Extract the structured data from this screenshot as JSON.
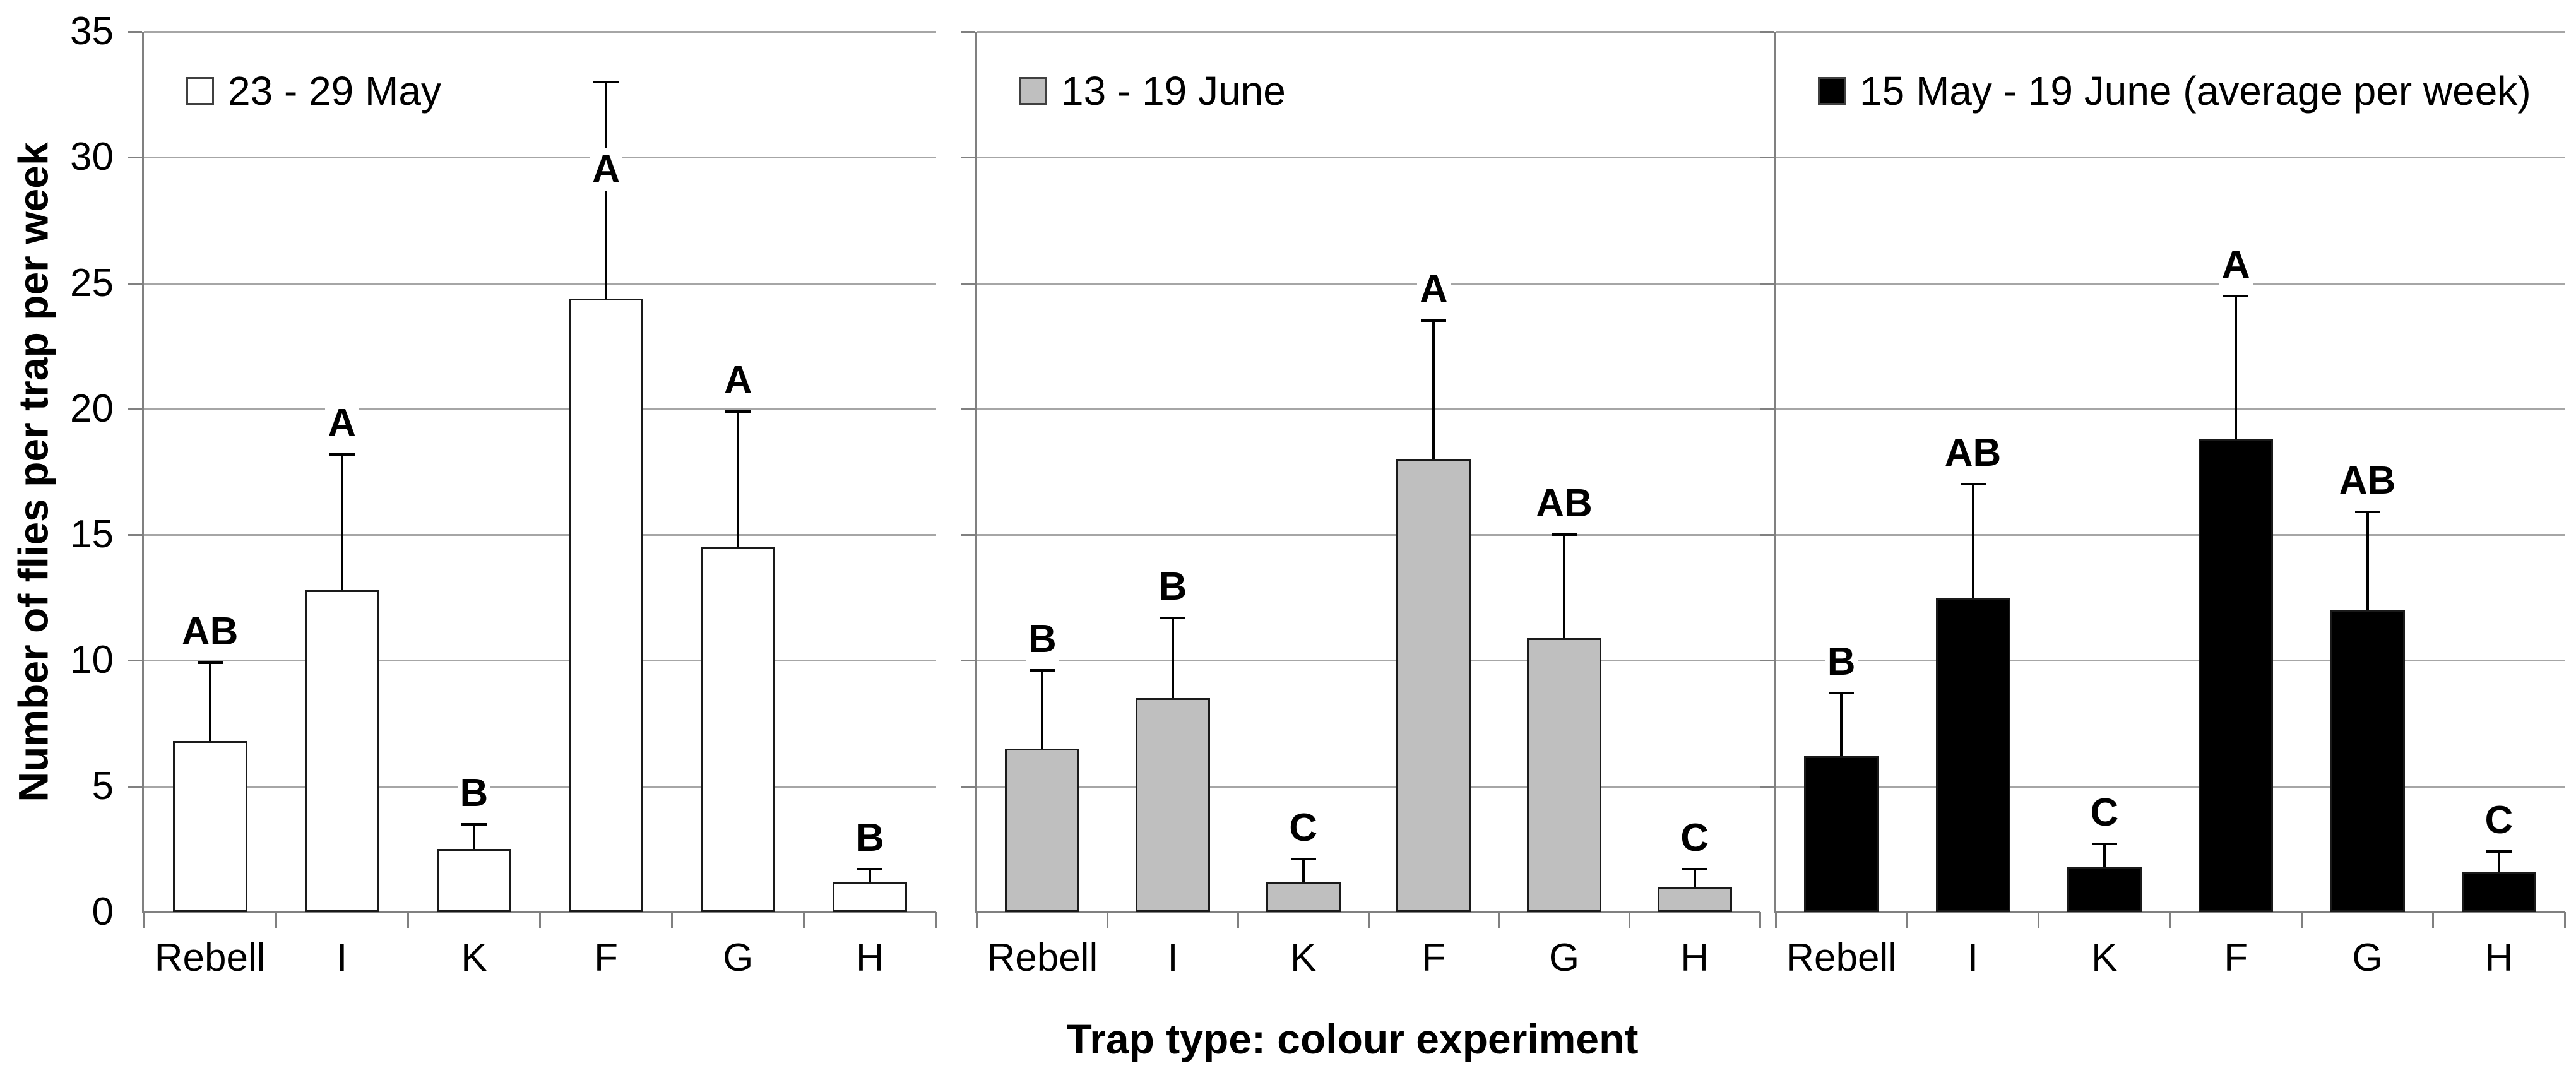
{
  "chart_data": {
    "type": "bar",
    "title": "",
    "xlabel": "Trap type: colour experiment",
    "ylabel": "Number of flies per trap per week",
    "ylim": [
      0,
      35
    ],
    "ytick_step": 5,
    "ytick_labels": [
      "0",
      "5",
      "10",
      "15",
      "20",
      "25",
      "30",
      "35"
    ],
    "grid": "horizontal",
    "legend_position": "top-left-inside-each-panel",
    "categories": [
      "Rebell",
      "I",
      "K",
      "F",
      "G",
      "H"
    ],
    "panels": [
      {
        "legend": "23 - 29 May",
        "bar_fill": "#ffffff",
        "values": [
          6.8,
          12.8,
          2.5,
          24.4,
          14.5,
          1.2
        ],
        "error_tops": [
          9.9,
          18.2,
          3.5,
          33.0,
          19.9,
          1.7
        ],
        "letters": [
          "AB",
          "A",
          "B",
          "A",
          "A",
          "B"
        ],
        "letter_y_on_line": [
          null,
          null,
          null,
          29.5,
          null,
          null
        ]
      },
      {
        "legend": "13 - 19 June",
        "bar_fill": "#bfbfbf",
        "values": [
          6.5,
          8.5,
          1.2,
          18.0,
          10.9,
          1.0
        ],
        "error_tops": [
          9.6,
          11.7,
          2.1,
          23.5,
          15.0,
          1.7
        ],
        "letters": [
          "B",
          "B",
          "C",
          "A",
          "AB",
          "C"
        ],
        "letter_y_on_line": [
          null,
          null,
          null,
          null,
          null,
          null
        ]
      },
      {
        "legend": "15 May - 19 June (average per week)",
        "bar_fill": "#000000",
        "values": [
          6.2,
          12.5,
          1.8,
          18.8,
          12.0,
          1.6
        ],
        "error_tops": [
          8.7,
          17.0,
          2.7,
          24.5,
          15.9,
          2.4
        ],
        "letters": [
          "B",
          "AB",
          "C",
          "A",
          "AB",
          "C"
        ],
        "letter_y_on_line": [
          null,
          null,
          null,
          null,
          null,
          null
        ]
      }
    ],
    "colors": {
      "gridline": "#a6a6a6",
      "axis": "#808080",
      "bar_border": "#1a1a1a",
      "gray_bar": "#bfbfbf",
      "black_bar": "#000000",
      "white_bar": "#ffffff"
    }
  }
}
